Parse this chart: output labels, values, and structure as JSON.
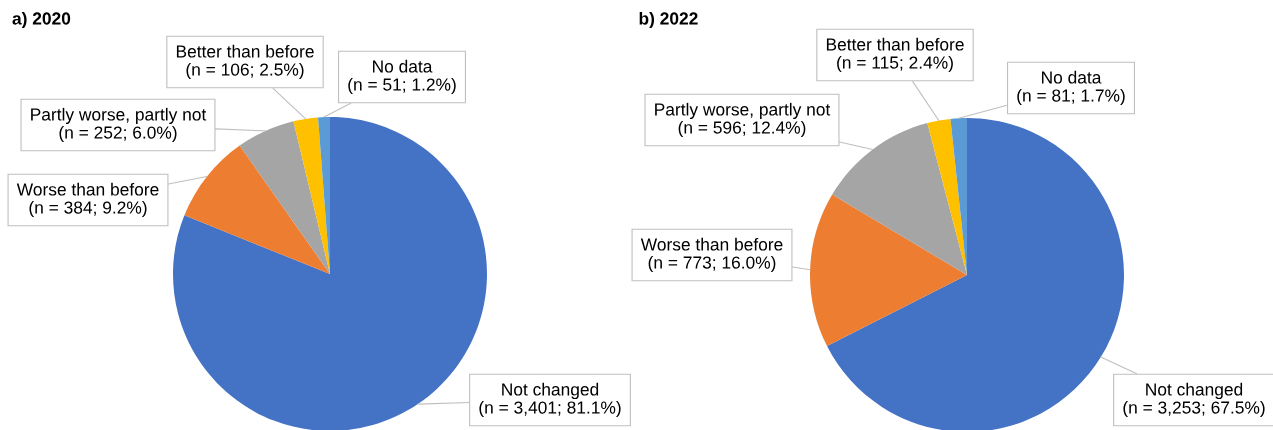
{
  "chart_data": [
    {
      "type": "pie",
      "title": "a) 2020",
      "categories": [
        "Not changed",
        "Worse than before",
        "Partly worse, partly not",
        "Better than before",
        "No data"
      ],
      "values": [
        3401,
        384,
        252,
        106,
        51
      ],
      "colors": [
        "#4472c4",
        "#ed7d31",
        "#a5a5a5",
        "#ffc000",
        "#5b9bd5"
      ],
      "value_labels": [
        "(n = 3,401; 81.1%)",
        "(n = 384; 9.2%)",
        "(n = 252; 6.0%)",
        "(n = 106; 2.5%)",
        "(n = 51; 1.2%)"
      ]
    },
    {
      "type": "pie",
      "title": "b) 2022",
      "categories": [
        "Not changed",
        "Worse than before",
        "Partly worse, partly not",
        "Better than before",
        "No data"
      ],
      "values": [
        3253,
        773,
        596,
        115,
        81
      ],
      "colors": [
        "#4472c4",
        "#ed7d31",
        "#a5a5a5",
        "#ffc000",
        "#5b9bd5"
      ],
      "value_labels": [
        "(n = 3,253; 67.5%)",
        "(n = 773; 16.0%)",
        "(n = 596; 12.4%)",
        "(n = 115; 2.4%)",
        "(n = 81; 1.7%)"
      ]
    }
  ]
}
